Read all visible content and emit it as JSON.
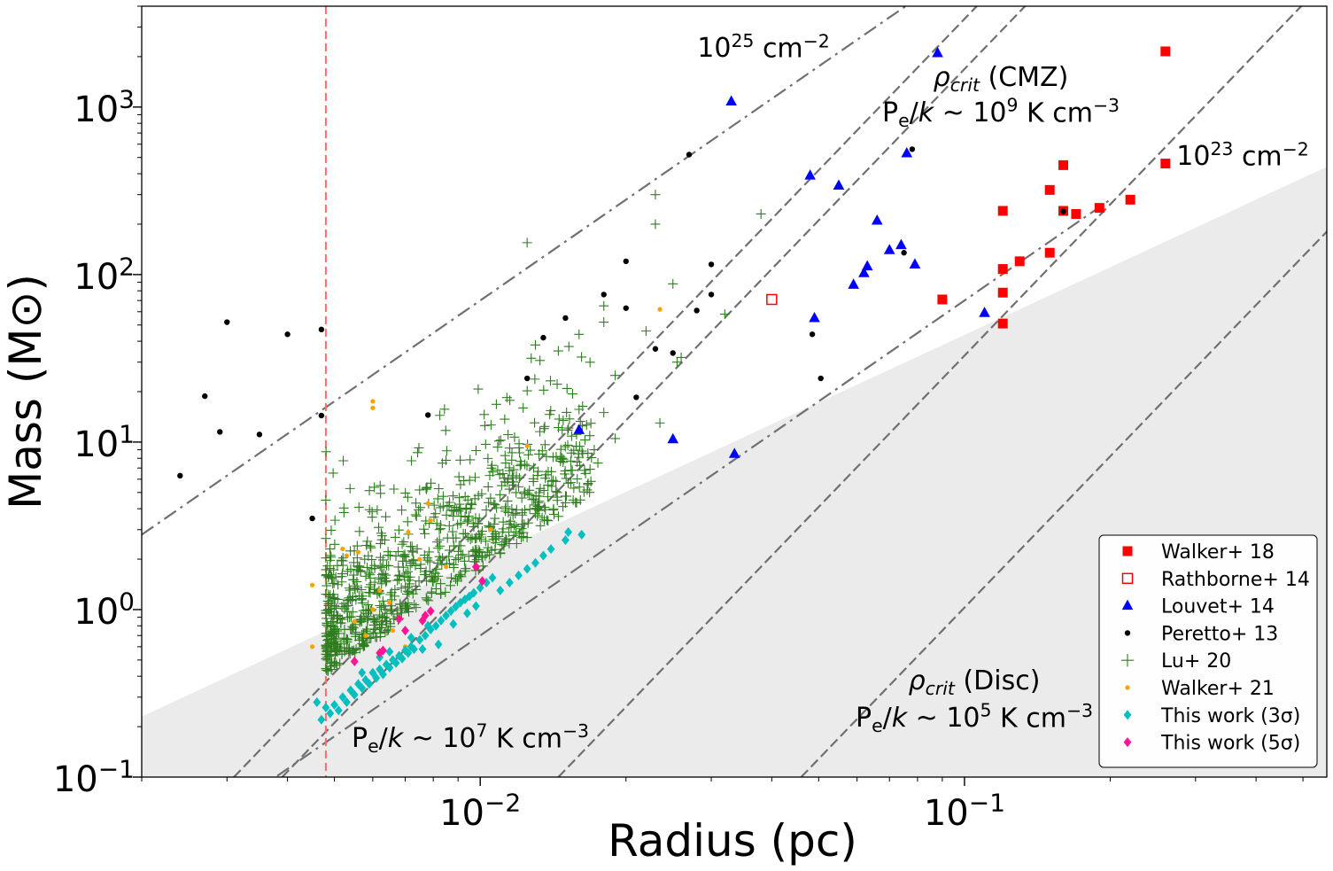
{
  "chart_data": {
    "type": "scatter",
    "xscale": "log",
    "yscale": "log",
    "xlim": [
      0.002,
      0.56
    ],
    "ylim": [
      0.1,
      4000
    ],
    "xlabel": "Radius (pc)",
    "ylabel": "Mass (M⊙)",
    "x_ticks": [
      {
        "value": 0.01,
        "base": "10",
        "exp": "−2"
      },
      {
        "value": 0.1,
        "base": "10",
        "exp": "−1"
      }
    ],
    "y_ticks": [
      {
        "value": 0.1,
        "base": "10",
        "exp": "−1"
      },
      {
        "value": 1,
        "base": "10",
        "exp": "0"
      },
      {
        "value": 10,
        "base": "10",
        "exp": "1"
      },
      {
        "value": 100,
        "base": "10",
        "exp": "2"
      },
      {
        "value": 1000,
        "base": "10",
        "exp": "3"
      }
    ],
    "shaded_region": {
      "from": [
        0.002,
        0.23
      ],
      "to": [
        0.56,
        440
      ],
      "color": "#ebebeb"
    },
    "resolution_limit": {
      "x": 0.0048,
      "color": "#ff6a6a"
    },
    "reference_lines": [
      {
        "name": "column-density-1e25",
        "style": "dashdot",
        "slope": 2,
        "points": [
          [
            0.002,
            2.8
          ],
          [
            0.2,
            28000
          ]
        ]
      },
      {
        "name": "column-density-1e23",
        "style": "dashdot",
        "slope": 2,
        "points": [
          [
            0.002,
            0.028
          ],
          [
            0.2,
            280
          ]
        ]
      },
      {
        "name": "pressure-1e9",
        "style": "dashed",
        "slope": 3,
        "points": [
          [
            0.0031,
            0.1
          ],
          [
            0.31,
            100000
          ]
        ]
      },
      {
        "name": "pressure-1e7",
        "style": "dashed",
        "slope": 3,
        "points": [
          [
            0.0039,
            0.1
          ],
          [
            0.39,
            100000
          ]
        ]
      },
      {
        "name": "pressure-1e5",
        "style": "dashed",
        "slope": 3,
        "points": [
          [
            0.0145,
            0.1
          ],
          [
            1.45,
            100000
          ]
        ]
      },
      {
        "name": "pressure-1e5-b",
        "style": "dashed",
        "slope": 3,
        "points": [
          [
            0.046,
            0.1
          ],
          [
            4.6,
            100000
          ]
        ]
      }
    ],
    "annotations": [
      {
        "name": "annot-1e25",
        "lines": [
          [
            {
              "t": "10"
            },
            {
              "t": "25",
              "sup": true
            },
            {
              "t": " cm"
            },
            {
              "t": "−2",
              "sup": true
            }
          ]
        ]
      },
      {
        "name": "annot-1e23",
        "lines": [
          [
            {
              "t": "10"
            },
            {
              "t": "23",
              "sup": true
            },
            {
              "t": " cm"
            },
            {
              "t": "−2",
              "sup": true
            }
          ]
        ]
      },
      {
        "name": "annot-cmz",
        "lines": [
          [
            {
              "t": "ρ",
              "it": true
            },
            {
              "t": "crit",
              "it": true,
              "sub": true
            },
            {
              "t": " (CMZ)"
            }
          ],
          [
            {
              "t": "P"
            },
            {
              "t": "e",
              "sub": true
            },
            {
              "t": "/"
            },
            {
              "t": "k",
              "it": true
            },
            {
              "t": " ~ 10"
            },
            {
              "t": "9",
              "sup": true
            },
            {
              "t": " K cm"
            },
            {
              "t": "−3",
              "sup": true
            }
          ]
        ]
      },
      {
        "name": "annot-1e7",
        "lines": [
          [
            {
              "t": "P"
            },
            {
              "t": "e",
              "sub": true
            },
            {
              "t": "/"
            },
            {
              "t": "k",
              "it": true
            },
            {
              "t": " ~ 10"
            },
            {
              "t": "7",
              "sup": true
            },
            {
              "t": " K cm"
            },
            {
              "t": "−3",
              "sup": true
            }
          ]
        ]
      },
      {
        "name": "annot-disc",
        "lines": [
          [
            {
              "t": "ρ",
              "it": true
            },
            {
              "t": "crit",
              "it": true,
              "sub": true
            },
            {
              "t": " (Disc)"
            }
          ],
          [
            {
              "t": "P"
            },
            {
              "t": "e",
              "sub": true
            },
            {
              "t": "/"
            },
            {
              "t": "k",
              "it": true
            },
            {
              "t": " ~ 10"
            },
            {
              "t": "5",
              "sup": true
            },
            {
              "t": " K cm"
            },
            {
              "t": "−3",
              "sup": true
            }
          ]
        ]
      }
    ],
    "legend": {
      "placement": "lower-right"
    },
    "series": [
      {
        "name": "Walker+ 18",
        "marker": "square",
        "filled": true,
        "color": "#ff0000",
        "points": [
          [
            0.26,
            2150
          ],
          [
            0.26,
            460
          ],
          [
            0.16,
            450
          ],
          [
            0.15,
            320
          ],
          [
            0.22,
            280
          ],
          [
            0.19,
            250
          ],
          [
            0.17,
            230
          ],
          [
            0.16,
            240
          ],
          [
            0.12,
            240
          ],
          [
            0.15,
            135
          ],
          [
            0.13,
            120
          ],
          [
            0.12,
            108
          ],
          [
            0.12,
            78
          ],
          [
            0.09,
            71
          ],
          [
            0.12,
            51
          ]
        ]
      },
      {
        "name": "Rathborne+ 14",
        "marker": "square",
        "filled": false,
        "color": "#ff0000",
        "points": [
          [
            0.04,
            71
          ]
        ]
      },
      {
        "name": "Louvet+ 14",
        "marker": "triangle",
        "filled": true,
        "color": "#0000ff",
        "points": [
          [
            0.088,
            2100
          ],
          [
            0.033,
            1080
          ],
          [
            0.076,
            530
          ],
          [
            0.048,
            390
          ],
          [
            0.055,
            340
          ],
          [
            0.066,
            210
          ],
          [
            0.074,
            150
          ],
          [
            0.07,
            140
          ],
          [
            0.079,
            115
          ],
          [
            0.063,
            112
          ],
          [
            0.062,
            102
          ],
          [
            0.059,
            87
          ],
          [
            0.11,
            59
          ],
          [
            0.049,
            55
          ],
          [
            0.016,
            11.8
          ],
          [
            0.025,
            10.4
          ],
          [
            0.0335,
            8.5
          ]
        ]
      },
      {
        "name": "Peretto+ 13",
        "marker": "circle",
        "filled": true,
        "color": "#000000",
        "points": [
          [
            0.027,
            520
          ],
          [
            0.078,
            560
          ],
          [
            0.018,
            76
          ],
          [
            0.02,
            120
          ],
          [
            0.03,
            115
          ],
          [
            0.03,
            76
          ],
          [
            0.028,
            61
          ],
          [
            0.02,
            63
          ],
          [
            0.015,
            55
          ],
          [
            0.0485,
            44
          ],
          [
            0.0135,
            42
          ],
          [
            0.023,
            36
          ],
          [
            0.025,
            34
          ],
          [
            0.0505,
            24
          ],
          [
            0.0125,
            24
          ],
          [
            0.021,
            18.5
          ],
          [
            0.0078,
            14.5
          ],
          [
            0.003,
            52
          ],
          [
            0.004,
            44
          ],
          [
            0.0047,
            47
          ],
          [
            0.0027,
            18.8
          ],
          [
            0.0029,
            11.5
          ],
          [
            0.0035,
            11.1
          ],
          [
            0.0047,
            14.4
          ],
          [
            0.0024,
            6.3
          ],
          [
            0.0045,
            3.5
          ],
          [
            0.075,
            135
          ],
          [
            0.16,
            238
          ]
        ]
      },
      {
        "name": "Lu+ 20",
        "marker": "plus",
        "filled": false,
        "color": "#2e7d1e",
        "points": []
      },
      {
        "name": "Walker+ 21",
        "marker": "circle-small",
        "filled": true,
        "color": "#ffa000",
        "points": [
          [
            0.0045,
            1.4
          ],
          [
            0.0045,
            0.6
          ],
          [
            0.0052,
            2.3
          ],
          [
            0.0053,
            2.1
          ],
          [
            0.0056,
            2.2
          ],
          [
            0.006,
            17.5
          ],
          [
            0.006,
            16
          ],
          [
            0.0071,
            2.9
          ],
          [
            0.0078,
            4.3
          ],
          [
            0.0079,
            3.4
          ],
          [
            0.0075,
            2.0
          ],
          [
            0.0065,
            1.1
          ],
          [
            0.006,
            1.0
          ],
          [
            0.0055,
            0.85
          ],
          [
            0.0058,
            0.7
          ],
          [
            0.0066,
            0.75
          ],
          [
            0.007,
            0.6
          ],
          [
            0.0105,
            3.0
          ],
          [
            0.0125,
            9.5
          ],
          [
            0.0235,
            62
          ],
          [
            0.0085,
            1.8
          ],
          [
            0.0062,
            1.3
          ]
        ]
      },
      {
        "name": "This work (3σ)",
        "marker": "diamond",
        "filled": true,
        "color": "#00bfbf",
        "points": [
          [
            0.0046,
            0.28
          ],
          [
            0.0047,
            0.22
          ],
          [
            0.0048,
            0.26
          ],
          [
            0.0049,
            0.24
          ],
          [
            0.005,
            0.27
          ],
          [
            0.0051,
            0.25
          ],
          [
            0.0052,
            0.3
          ],
          [
            0.0053,
            0.28
          ],
          [
            0.0054,
            0.33
          ],
          [
            0.0055,
            0.31
          ],
          [
            0.0056,
            0.36
          ],
          [
            0.0057,
            0.34
          ],
          [
            0.0058,
            0.38
          ],
          [
            0.0059,
            0.36
          ],
          [
            0.006,
            0.42
          ],
          [
            0.0061,
            0.39
          ],
          [
            0.0062,
            0.44
          ],
          [
            0.0063,
            0.41
          ],
          [
            0.0064,
            0.47
          ],
          [
            0.0065,
            0.45
          ],
          [
            0.0066,
            0.5
          ],
          [
            0.0067,
            0.48
          ],
          [
            0.0068,
            0.53
          ],
          [
            0.0069,
            0.51
          ],
          [
            0.007,
            0.57
          ],
          [
            0.0071,
            0.55
          ],
          [
            0.0072,
            0.6
          ],
          [
            0.0073,
            0.58
          ],
          [
            0.0075,
            0.66
          ],
          [
            0.0077,
            0.7
          ],
          [
            0.0079,
            0.76
          ],
          [
            0.0081,
            0.8
          ],
          [
            0.0083,
            0.86
          ],
          [
            0.0085,
            0.92
          ],
          [
            0.0087,
            0.98
          ],
          [
            0.0089,
            1.04
          ],
          [
            0.0091,
            1.1
          ],
          [
            0.0093,
            1.15
          ],
          [
            0.0095,
            1.2
          ],
          [
            0.0097,
            1.26
          ],
          [
            0.01,
            1.35
          ],
          [
            0.0103,
            1.45
          ],
          [
            0.0106,
            1.55
          ],
          [
            0.011,
            1.3
          ],
          [
            0.0115,
            1.45
          ],
          [
            0.012,
            1.6
          ],
          [
            0.0125,
            1.75
          ],
          [
            0.013,
            1.9
          ],
          [
            0.0135,
            2.1
          ],
          [
            0.014,
            2.3
          ],
          [
            0.015,
            2.6
          ],
          [
            0.0152,
            2.9
          ],
          [
            0.0162,
            2.8
          ],
          [
            0.0065,
            0.56
          ],
          [
            0.0072,
            0.68
          ],
          [
            0.0078,
            0.8
          ],
          [
            0.0088,
            0.82
          ],
          [
            0.0094,
            0.95
          ],
          [
            0.0098,
            1.05
          ],
          [
            0.0057,
            0.42
          ],
          [
            0.0062,
            0.52
          ],
          [
            0.0082,
            0.62
          ],
          [
            0.0076,
            0.58
          ]
        ]
      },
      {
        "name": "This work (5σ)",
        "marker": "diamond",
        "filled": true,
        "color": "#ff1493",
        "points": [
          [
            0.0098,
            1.8
          ],
          [
            0.0101,
            1.48
          ],
          [
            0.0079,
            0.98
          ],
          [
            0.0077,
            0.92
          ],
          [
            0.0076,
            0.86
          ],
          [
            0.0068,
            0.88
          ],
          [
            0.007,
            0.75
          ],
          [
            0.0063,
            0.57
          ],
          [
            0.0062,
            0.55
          ],
          [
            0.0055,
            0.49
          ]
        ]
      }
    ]
  }
}
